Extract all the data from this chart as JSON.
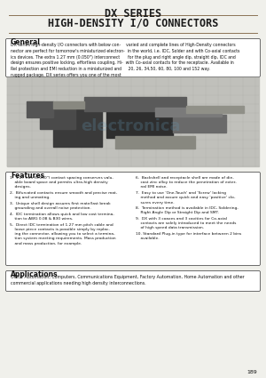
{
  "title_line1": "DX SERIES",
  "title_line2": "HIGH-DENSITY I/O CONNECTORS",
  "bg_color": "#f0f0eb",
  "section_general_title": "General",
  "section_general_text": "DX series high-density I/O connectors with below connector are perfect for tomorrow's miniaturized electronics devices. The extra 1.27 mm (0.050\") interconnect design ensures positive locking, effortless coupling, Hi-Rel protection and EMI reduction in a miniaturized and rugged package. DX series offers you one of the most varied and complete lines of High-Density connectors in the world, i.e. IDC, Solder and with Co-axial contacts for the plug and right angle dip, straight dip, IDC and with Co-axial contacts for the receptacle. Available in 20, 26, 34,50, 60, 80, 100 and 152 way.",
  "features_title": "Features",
  "features_left": [
    "1.  1.27 mm (0.050\") contact spacing conserves valu-\n    able board space and permits ultra-high density\n    designs.",
    "2.  Bifurcated contacts ensure smooth and precise mat-\n    ing and unmating.",
    "3.  Unique shell design assures first mate/last break\n    grounding and overall noise protection.",
    "4.  IDC termination allows quick and low cost termina-\n    tion to AWG 0.08 & B30 wires.",
    "5.  Direct IDC termination of 1.27 mm pitch cable and\n    loose piece contacts is possible simply by replac-\n    ing the connector, allowing you to select a termina-\n    tion system meeting requirements. Mass production\n    and mass production, for example."
  ],
  "features_right": [
    "6.  Backshell and receptacle shell are made of die-\n    cast zinc alloy to reduce the penetration of exter-\n    nal EMI noise.",
    "7.  Easy to use 'One-Touch' and 'Screw' locking\n    method and assure quick and easy 'positive' clo-\n    sures every time.",
    "8.  Termination method is available in IDC, Soldering,\n    Right Angle Dip or Straight Dip and SMT.",
    "9.  DX with 3 coaxes and 3 cavities for Co-axial\n    contacts are solely introduced to meet the needs\n    of high speed data transmission.",
    "10. Standard Plug-in type for interface between 2 bins\n    available."
  ],
  "applications_title": "Applications",
  "applications_text": "Office Automation, Computers, Communications Equipment, Factory Automation, Home Automation and other\ncommercial applications needing high density interconnections.",
  "page_number": "189",
  "title_color": "#1a1a1a",
  "separator_color": "#8B7355",
  "box_border_color": "#555555",
  "text_color": "#111111",
  "section_title_color": "#111111"
}
